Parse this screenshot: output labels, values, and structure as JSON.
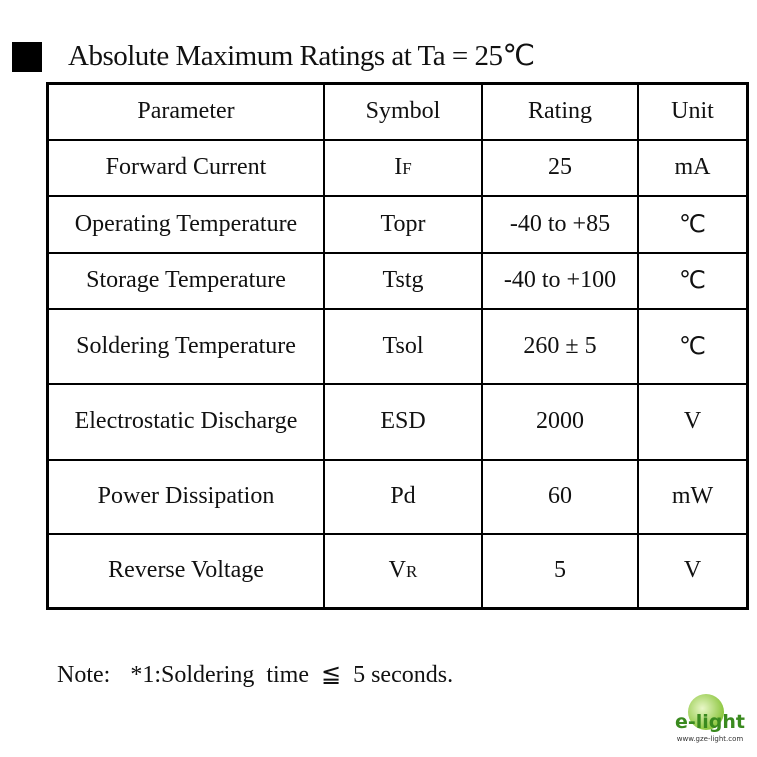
{
  "header": {
    "title": "Absolute Maximum Ratings at Ta = 25℃"
  },
  "table": {
    "columns": [
      "Parameter",
      "Symbol",
      "Rating",
      "Unit"
    ],
    "rows": [
      [
        "Forward Current",
        [
          "I",
          "F"
        ],
        "25",
        "mA"
      ],
      [
        "Operating Temperature",
        "Topr",
        "-40 to +85",
        "℃"
      ],
      [
        "Storage Temperature",
        "Tstg",
        "-40 to +100",
        "℃"
      ],
      [
        "Soldering Temperature",
        "Tsol",
        "260 ± 5",
        "℃"
      ],
      [
        "Electrostatic Discharge",
        "ESD",
        "2000",
        "V"
      ],
      [
        "Power Dissipation",
        "Pd",
        "60",
        "mW"
      ],
      [
        "Reverse Voltage",
        [
          "V",
          "R"
        ],
        "5",
        "V"
      ]
    ]
  },
  "note": {
    "label": "Note:",
    "text": "*1:Soldering  time  ≦  5 seconds."
  },
  "logo": {
    "brand": "e-light",
    "url": "www.gze-light.com"
  }
}
